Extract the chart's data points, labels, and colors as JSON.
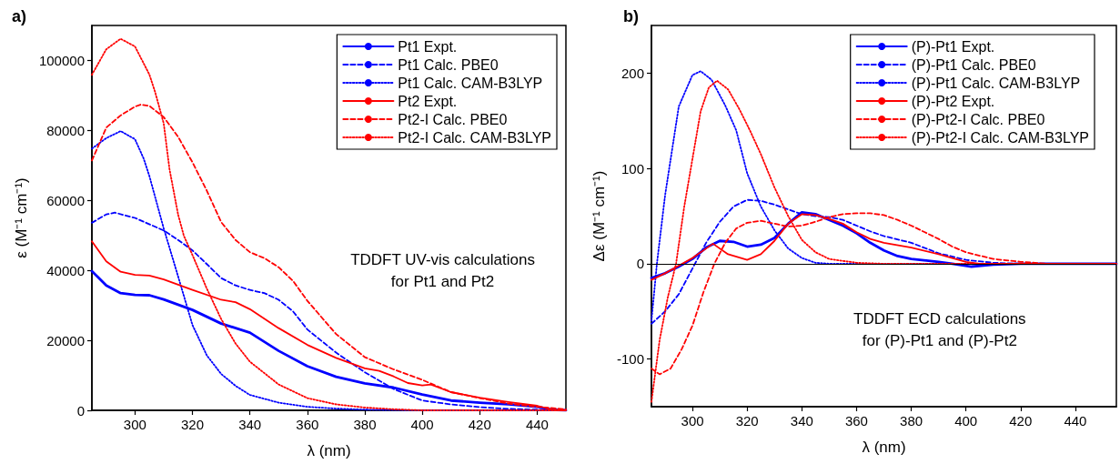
{
  "chart_data": [
    {
      "type": "line",
      "title": "a)",
      "xlabel": "λ (nm)",
      "ylabel": "ε (M⁻¹ cm⁻¹)",
      "xlim": [
        285,
        450
      ],
      "xticks": [
        300,
        320,
        340,
        360,
        380,
        400,
        420,
        440
      ],
      "ylim": [
        0,
        110000
      ],
      "yticks": [
        0,
        20000,
        40000,
        60000,
        80000,
        100000
      ],
      "grid": false,
      "legend": "top right",
      "marker": "none",
      "annotations": [
        "TDDFT UV-vis calculations\nfor Pt1 and Pt2"
      ],
      "series": [
        {
          "name": "Pt1 Expt.",
          "color": "#0000ff",
          "line_style": "solid",
          "x": [
            285,
            290,
            295,
            300,
            305,
            310,
            320,
            330,
            340,
            350,
            360,
            370,
            380,
            390,
            400,
            410,
            420,
            430,
            440,
            445,
            450
          ],
          "values": [
            39800,
            35700,
            33500,
            33000,
            32900,
            31700,
            28700,
            24800,
            22200,
            17000,
            12600,
            9600,
            7700,
            6500,
            4500,
            2800,
            2200,
            1700,
            1000,
            200,
            0
          ]
        },
        {
          "name": "Pt1 Calc. PBE0",
          "color": "#0000ff",
          "line_style": "dashed",
          "x": [
            285,
            290,
            293,
            300,
            310,
            315,
            320,
            325,
            330,
            335,
            340,
            345,
            350,
            355,
            360,
            370,
            380,
            390,
            400,
            410,
            420,
            430,
            440,
            450
          ],
          "values": [
            53600,
            56000,
            56500,
            55000,
            51400,
            48700,
            45700,
            41800,
            37800,
            35700,
            34400,
            33500,
            31600,
            28300,
            23100,
            16500,
            10900,
            6100,
            2800,
            1700,
            900,
            400,
            200,
            0
          ]
        },
        {
          "name": "Pt1 Calc. CAM-B3LYP",
          "color": "#0000ff",
          "line_style": "dotted",
          "x": [
            285,
            290,
            295,
            300,
            303,
            305,
            308,
            310,
            315,
            320,
            325,
            330,
            335,
            340,
            350,
            360,
            370,
            380,
            400,
            450
          ],
          "values": [
            74800,
            77800,
            79800,
            77500,
            72000,
            67000,
            58000,
            52000,
            38300,
            24400,
            15700,
            10400,
            7000,
            4400,
            2200,
            1000,
            500,
            200,
            0,
            0
          ]
        },
        {
          "name": "Pt2 Expt.",
          "color": "#ff0000",
          "line_style": "solid",
          "x": [
            285,
            290,
            295,
            300,
            305,
            310,
            320,
            330,
            335,
            340,
            350,
            360,
            370,
            380,
            385,
            390,
            395,
            400,
            403,
            410,
            420,
            430,
            440,
            445,
            450
          ],
          "values": [
            48300,
            42600,
            39600,
            38700,
            38500,
            37400,
            34400,
            31600,
            30900,
            28900,
            23500,
            18700,
            15000,
            12000,
            11300,
            9700,
            7800,
            7100,
            7400,
            5200,
            3600,
            2400,
            1300,
            200,
            0
          ]
        },
        {
          "name": "Pt2-I Calc. PBE0",
          "color": "#ff0000",
          "line_style": "dashed",
          "x": [
            285,
            290,
            295,
            300,
            302,
            305,
            310,
            315,
            320,
            325,
            330,
            335,
            340,
            345,
            350,
            355,
            360,
            370,
            380,
            390,
            400,
            410,
            420,
            430,
            440,
            450
          ],
          "values": [
            71400,
            80800,
            84300,
            86800,
            87400,
            87000,
            83800,
            78200,
            70900,
            62800,
            53800,
            48700,
            45200,
            43500,
            40900,
            37000,
            31300,
            21800,
            15200,
            11700,
            8700,
            5200,
            3500,
            1900,
            1000,
            300
          ]
        },
        {
          "name": "Pt2-I Calc. CAM-B3LYP",
          "color": "#ff0000",
          "line_style": "dotted",
          "x": [
            285,
            290,
            295,
            300,
            305,
            307,
            310,
            312,
            315,
            317,
            320,
            325,
            330,
            335,
            340,
            350,
            360,
            370,
            380,
            390,
            400,
            450
          ],
          "values": [
            95900,
            103200,
            106200,
            104000,
            96000,
            91000,
            82000,
            69000,
            56000,
            49900,
            44400,
            34800,
            26100,
            19100,
            13900,
            7400,
            3500,
            1700,
            800,
            300,
            0,
            0
          ]
        }
      ]
    },
    {
      "type": "line",
      "title": "b)",
      "xlabel": "λ (nm)",
      "ylabel": "Δε (M⁻¹ cm⁻¹)",
      "xlim": [
        285,
        455
      ],
      "xticks": [
        300,
        320,
        340,
        360,
        380,
        400,
        420,
        440
      ],
      "ylim": [
        -150,
        250
      ],
      "yticks": [
        -100,
        0,
        100,
        200
      ],
      "grid": false,
      "legend": "top right",
      "marker": "none",
      "ref_lines": [
        {
          "axis": "y",
          "value": 0,
          "color": "#000000"
        }
      ],
      "annotations": [
        "TDDFT ECD calculations\nfor (P)-Pt1 and (P)-Pt2"
      ],
      "series": [
        {
          "name": "(P)-Pt1 Expt.",
          "color": "#0000ff",
          "line_style": "solid",
          "x": [
            285,
            290,
            295,
            300,
            305,
            310,
            315,
            320,
            325,
            330,
            335,
            340,
            345,
            350,
            355,
            360,
            365,
            370,
            375,
            380,
            390,
            395,
            402,
            410,
            420,
            440,
            455
          ],
          "values": [
            -15,
            -10,
            -3,
            5,
            17,
            24,
            23,
            18,
            20,
            27,
            42,
            54,
            52,
            46,
            40,
            32,
            22,
            14,
            8,
            5,
            2,
            0,
            -3,
            -1,
            0,
            0,
            0
          ]
        },
        {
          "name": "(P)-Pt1 Calc. PBE0",
          "color": "#0000ff",
          "line_style": "dashed",
          "x": [
            285,
            290,
            295,
            300,
            305,
            310,
            315,
            320,
            325,
            330,
            335,
            340,
            345,
            350,
            355,
            360,
            365,
            370,
            380,
            390,
            400,
            410,
            420,
            455
          ],
          "values": [
            -63,
            -50,
            -32,
            -5,
            22,
            44,
            60,
            67,
            66,
            62,
            57,
            52,
            50,
            49,
            46,
            40,
            34,
            29,
            22,
            11,
            4,
            1,
            0,
            0
          ]
        },
        {
          "name": "(P)-Pt1 Calc. CAM-B3LYP",
          "color": "#0000ff",
          "line_style": "dotted",
          "x": [
            285,
            287,
            290,
            295,
            300,
            303,
            307,
            312,
            316,
            320,
            325,
            330,
            335,
            340,
            345,
            350,
            455
          ],
          "values": [
            -60,
            0,
            72,
            165,
            198,
            202,
            193,
            166,
            140,
            95,
            60,
            35,
            16,
            6,
            1,
            0,
            0
          ]
        },
        {
          "name": "(P)-Pt2 Expt.",
          "color": "#ff0000",
          "line_style": "solid",
          "x": [
            285,
            290,
            295,
            300,
            305,
            307.5,
            313,
            320,
            325,
            330,
            335,
            340,
            345,
            350,
            355,
            360,
            365,
            370,
            380,
            390,
            395,
            400,
            405,
            420,
            455
          ],
          "values": [
            -17,
            -10,
            -2,
            6,
            16,
            21,
            10,
            4,
            10,
            24,
            42,
            52,
            51,
            47,
            42,
            33,
            26,
            22,
            17,
            10,
            6,
            2,
            0,
            0,
            0
          ]
        },
        {
          "name": "(P)-Pt2-I Calc. PBE0",
          "color": "#ff0000",
          "line_style": "dashed",
          "x": [
            285,
            288,
            292,
            296,
            300,
            304,
            308,
            312,
            316,
            320,
            325,
            330,
            335,
            340,
            345,
            350,
            355,
            360,
            365,
            370,
            375,
            380,
            385,
            390,
            395,
            400,
            410,
            420,
            430,
            455
          ],
          "values": [
            -110,
            -116,
            -110,
            -90,
            -65,
            -30,
            0,
            22,
            37,
            43,
            45,
            42,
            39,
            40,
            44,
            49,
            52,
            53,
            53,
            51,
            46,
            40,
            33,
            26,
            18,
            12,
            5,
            2,
            0,
            0
          ]
        },
        {
          "name": "(P)-Pt2-I Calc. CAM-B3LYP",
          "color": "#ff0000",
          "line_style": "dotted",
          "x": [
            285,
            288,
            291,
            294,
            297,
            300,
            303,
            306,
            309,
            313,
            317,
            321,
            325,
            330,
            335,
            340,
            345,
            350,
            360,
            370,
            455
          ],
          "values": [
            -145,
            -80,
            -35,
            0,
            60,
            110,
            160,
            185,
            192,
            183,
            163,
            140,
            115,
            80,
            50,
            25,
            12,
            5,
            1,
            0,
            0
          ]
        }
      ]
    }
  ]
}
